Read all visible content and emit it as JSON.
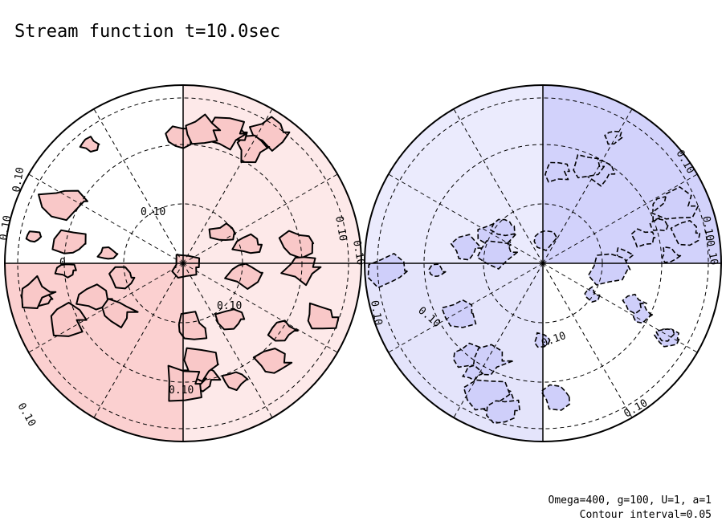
{
  "title": "Stream function t=10.0sec",
  "notes": [
    "Omega=400, g=100, U=1, a=1",
    "Contour interval=0.05"
  ],
  "left_labels": [
    "0.10",
    "0.10",
    "0.10",
    "0.10",
    "0.10",
    "0.10",
    "0",
    "0.10",
    "0.10"
  ],
  "right_labels": [
    "0.10",
    "0.10",
    "0.10",
    "0.10",
    "0.10",
    "0.10",
    "0.10"
  ]
}
